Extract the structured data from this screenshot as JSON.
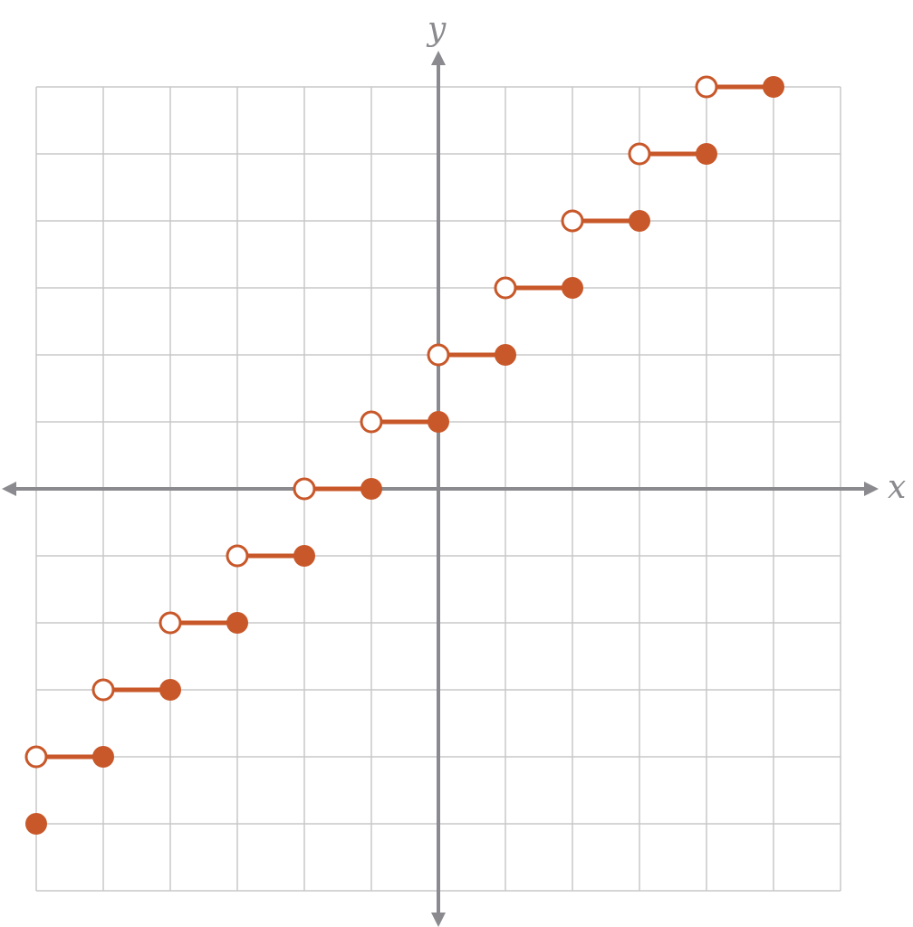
{
  "chart_data": {
    "type": "line",
    "title": "",
    "xlabel": "x",
    "ylabel": "y",
    "xlim": [
      -6,
      6
    ],
    "ylim": [
      -6,
      6
    ],
    "grid": true,
    "colors": {
      "series": "#c8582a",
      "grid": "#c8c8c8",
      "axis": "#8a8a8f"
    },
    "steps": [
      {
        "x_open": -6,
        "x_closed": -5,
        "y": -4
      },
      {
        "x_open": -5,
        "x_closed": -4,
        "y": -3
      },
      {
        "x_open": -4,
        "x_closed": -3,
        "y": -2
      },
      {
        "x_open": -3,
        "x_closed": -2,
        "y": -1
      },
      {
        "x_open": -2,
        "x_closed": -1,
        "y": 0
      },
      {
        "x_open": -1,
        "x_closed": 0,
        "y": 1
      },
      {
        "x_open": 0,
        "x_closed": 1,
        "y": 2
      },
      {
        "x_open": 1,
        "x_closed": 2,
        "y": 3
      },
      {
        "x_open": 2,
        "x_closed": 3,
        "y": 4
      },
      {
        "x_open": 3,
        "x_closed": 4,
        "y": 5
      },
      {
        "x_open": 4,
        "x_closed": 5,
        "y": 6
      }
    ],
    "isolated_points": [
      {
        "x": -6,
        "y": -5
      }
    ]
  }
}
